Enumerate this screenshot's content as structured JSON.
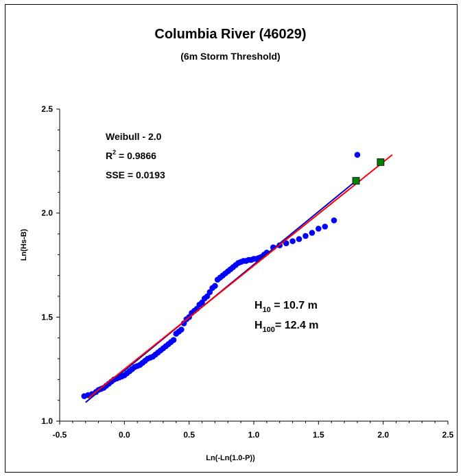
{
  "chart_data": {
    "type": "scatter",
    "title": "Columbia River (46029)",
    "subtitle": "(6m Storm Threshold)",
    "xlabel": "Ln(-Ln(1.0-P))",
    "ylabel": "Ln(Hs-B)",
    "xlim": [
      -0.5,
      2.5
    ],
    "ylim": [
      1.0,
      2.5
    ],
    "x_ticks": [
      "-0.5",
      "0.0",
      "0.5",
      "1.0",
      "1.5",
      "2.0",
      "2.5"
    ],
    "y_ticks": [
      "1.0",
      "1.5",
      "2.0",
      "2.5"
    ],
    "grid": false,
    "stats": {
      "line1": "Weibull - 2.0",
      "r2_label": "R",
      "r2_sup": "2",
      "r2_value": " = 0.9866",
      "sse": "SSE = 0.0193"
    },
    "return_periods": [
      {
        "label": "H",
        "sub": "10",
        "value": " = 10.7 m"
      },
      {
        "label": "H",
        "sub": "100",
        "value": "= 12.4 m"
      }
    ],
    "colors": {
      "data": "#0000ff",
      "fit": "#ff0000",
      "trend": "#0000cc",
      "return": "#008000"
    },
    "series": [
      {
        "type": "points",
        "points": [
          [
            -0.31,
            1.12
          ],
          [
            -0.28,
            1.125
          ],
          [
            -0.25,
            1.13
          ],
          [
            -0.22,
            1.14
          ],
          [
            -0.2,
            1.15
          ],
          [
            -0.18,
            1.155
          ],
          [
            -0.16,
            1.16
          ],
          [
            -0.14,
            1.17
          ],
          [
            -0.12,
            1.18
          ],
          [
            -0.1,
            1.19
          ],
          [
            -0.08,
            1.2
          ],
          [
            -0.06,
            1.205
          ],
          [
            -0.04,
            1.21
          ],
          [
            -0.02,
            1.215
          ],
          [
            0.0,
            1.22
          ],
          [
            0.02,
            1.23
          ],
          [
            0.04,
            1.24
          ],
          [
            0.06,
            1.25
          ],
          [
            0.08,
            1.26
          ],
          [
            0.1,
            1.265
          ],
          [
            0.12,
            1.27
          ],
          [
            0.14,
            1.28
          ],
          [
            0.16,
            1.29
          ],
          [
            0.18,
            1.3
          ],
          [
            0.2,
            1.305
          ],
          [
            0.22,
            1.31
          ],
          [
            0.24,
            1.32
          ],
          [
            0.26,
            1.33
          ],
          [
            0.28,
            1.34
          ],
          [
            0.3,
            1.35
          ],
          [
            0.32,
            1.36
          ],
          [
            0.34,
            1.37
          ],
          [
            0.36,
            1.38
          ],
          [
            0.38,
            1.39
          ],
          [
            0.4,
            1.42
          ],
          [
            0.42,
            1.43
          ],
          [
            0.44,
            1.44
          ],
          [
            0.46,
            1.47
          ],
          [
            0.48,
            1.49
          ],
          [
            0.5,
            1.5
          ],
          [
            0.52,
            1.52
          ],
          [
            0.54,
            1.53
          ],
          [
            0.56,
            1.54
          ],
          [
            0.58,
            1.56
          ],
          [
            0.6,
            1.57
          ],
          [
            0.62,
            1.59
          ],
          [
            0.64,
            1.6
          ],
          [
            0.66,
            1.62
          ],
          [
            0.68,
            1.64
          ],
          [
            0.7,
            1.65
          ],
          [
            0.72,
            1.68
          ],
          [
            0.74,
            1.69
          ],
          [
            0.76,
            1.7
          ],
          [
            0.78,
            1.71
          ],
          [
            0.8,
            1.72
          ],
          [
            0.82,
            1.73
          ],
          [
            0.84,
            1.74
          ],
          [
            0.86,
            1.75
          ],
          [
            0.88,
            1.76
          ],
          [
            0.9,
            1.765
          ],
          [
            0.92,
            1.77
          ],
          [
            0.94,
            1.77
          ],
          [
            0.96,
            1.775
          ],
          [
            0.98,
            1.775
          ],
          [
            1.0,
            1.78
          ],
          [
            1.02,
            1.78
          ],
          [
            1.04,
            1.785
          ],
          [
            1.06,
            1.79
          ],
          [
            1.08,
            1.8
          ],
          [
            1.1,
            1.81
          ],
          [
            1.15,
            1.835
          ],
          [
            1.2,
            1.845
          ],
          [
            1.25,
            1.855
          ],
          [
            1.3,
            1.865
          ],
          [
            1.35,
            1.875
          ],
          [
            1.4,
            1.89
          ],
          [
            1.45,
            1.905
          ],
          [
            1.5,
            1.925
          ],
          [
            1.55,
            1.935
          ],
          [
            1.62,
            1.965
          ],
          [
            1.8,
            2.28
          ]
        ]
      },
      {
        "type": "fit_line",
        "color": "red",
        "x": [
          -0.28,
          2.07
        ],
        "y": [
          1.11,
          2.28
        ]
      },
      {
        "type": "trend_line",
        "color": "blue",
        "x": [
          -0.3,
          1.8
        ],
        "y": [
          1.09,
          2.16
        ]
      },
      {
        "type": "return_points",
        "x": [
          1.79,
          1.98
        ],
        "y": [
          2.155,
          2.245
        ]
      }
    ]
  }
}
